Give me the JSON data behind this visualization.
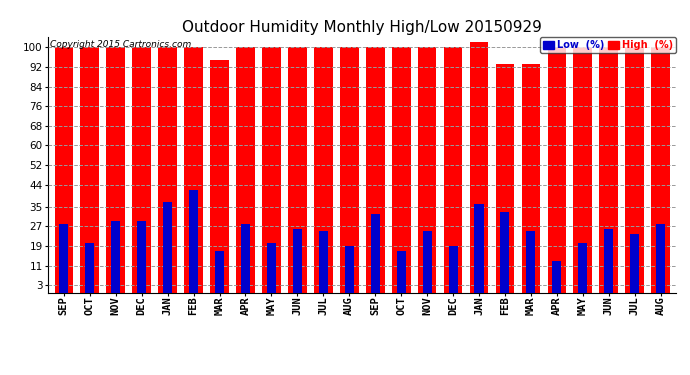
{
  "title": "Outdoor Humidity Monthly High/Low 20150929",
  "copyright": "Copyright 2015 Cartronics.com",
  "background_color": "#ffffff",
  "plot_bg_color": "#ffffff",
  "months": [
    "SEP",
    "OCT",
    "NOV",
    "DEC",
    "JAN",
    "FEB",
    "MAR",
    "APR",
    "MAY",
    "JUN",
    "JUL",
    "AUG",
    "SEP",
    "OCT",
    "NOV",
    "DEC",
    "JAN",
    "FEB",
    "MAR",
    "APR",
    "MAY",
    "JUN",
    "JUL",
    "AUG"
  ],
  "high_values": [
    100,
    100,
    100,
    100,
    100,
    100,
    95,
    100,
    100,
    100,
    100,
    100,
    100,
    100,
    100,
    100,
    102,
    93,
    93,
    100,
    100,
    100,
    100,
    100
  ],
  "low_values": [
    28,
    20,
    29,
    29,
    37,
    42,
    17,
    28,
    20,
    26,
    25,
    19,
    32,
    17,
    25,
    19,
    36,
    33,
    25,
    13,
    20,
    26,
    24,
    28
  ],
  "high_color": "#ff0000",
  "low_color": "#0000cc",
  "yticks": [
    3,
    11,
    19,
    27,
    35,
    44,
    52,
    60,
    68,
    76,
    84,
    92,
    100
  ],
  "ylim": [
    0,
    104
  ],
  "grid_color": "#999999",
  "title_fontsize": 11,
  "tick_fontsize": 7.5,
  "legend_labels": [
    "Low  (%)",
    "High  (%)"
  ],
  "legend_colors": [
    "#0000cc",
    "#ff0000"
  ]
}
